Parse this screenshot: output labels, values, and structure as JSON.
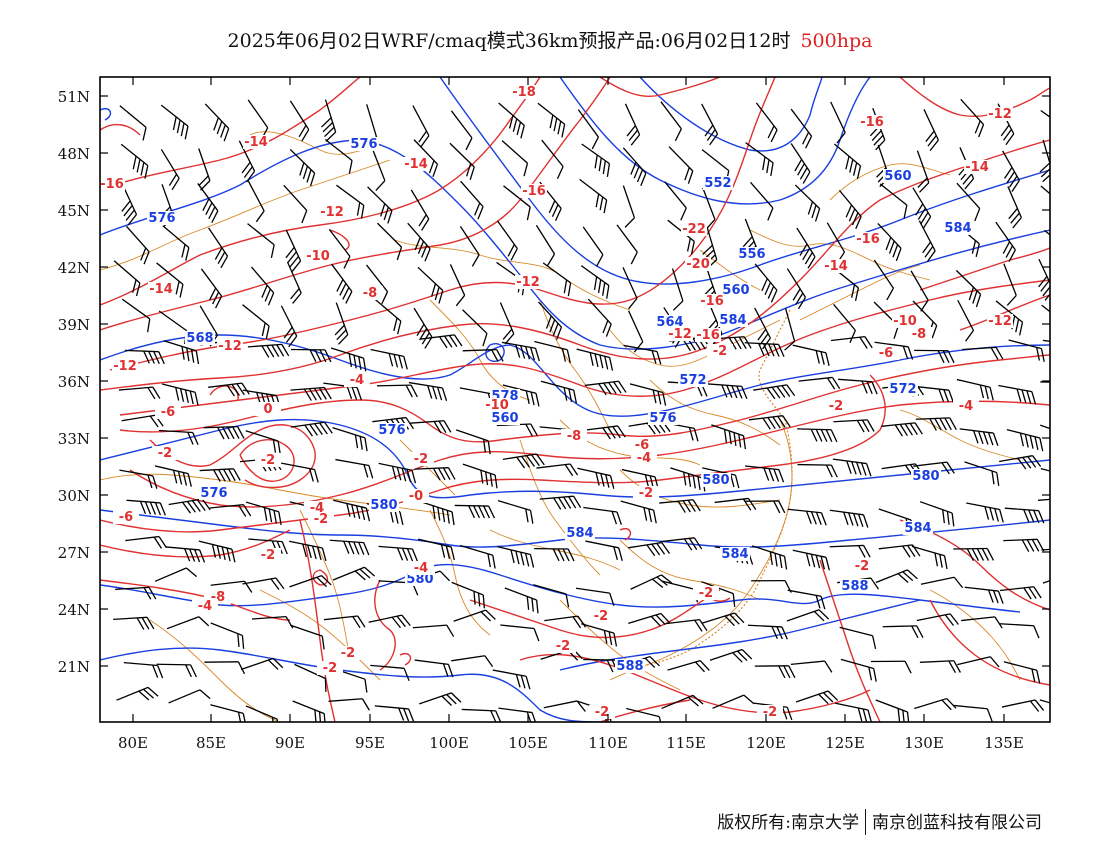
{
  "title": {
    "text": "2025年06月02日WRF/cmaq模式36km预报产品:06月02日12时",
    "level": "500hpa"
  },
  "footer": {
    "left": "版权所有:南京大学",
    "right": "南京创蓝科技有限公司"
  },
  "axes": {
    "lat_labels": [
      "51N",
      "48N",
      "45N",
      "42N",
      "39N",
      "36N",
      "33N",
      "30N",
      "27N",
      "24N",
      "21N"
    ],
    "lon_labels": [
      "80E",
      "85E",
      "90E",
      "95E",
      "100E",
      "105E",
      "110E",
      "115E",
      "120E",
      "125E",
      "130E",
      "135E"
    ]
  },
  "colors": {
    "temperature": "#e03030",
    "height": "#1a3fe0",
    "border": "#d9892a",
    "wind": "#000000"
  },
  "height_labels": [
    "576",
    "576",
    "552",
    "556",
    "584",
    "560",
    "564",
    "568",
    "560",
    "584",
    "572",
    "576",
    "572",
    "580",
    "576",
    "576",
    "580",
    "580",
    "578",
    "560",
    "584",
    "580",
    "584",
    "588",
    "588",
    "584"
  ],
  "temp_labels": [
    "-16",
    "-14",
    "-16",
    "-18",
    "-14",
    "-16",
    "-12",
    "-22",
    "-16",
    "-10",
    "-20",
    "-14",
    "-14",
    "-12",
    "-8",
    "-12",
    "-12",
    "-14",
    "-16",
    "-10",
    "-12",
    "-12",
    "-8",
    "-6",
    "-6",
    "-4",
    "-4",
    "-10",
    "-8",
    "0",
    "-2",
    "-6",
    "-4",
    "-2",
    "-6",
    "-2",
    "-4",
    "-2",
    "-2",
    "-2",
    "-0",
    "-2",
    "-2",
    "-8",
    "-4",
    "-4",
    "-2",
    "-2",
    "-2",
    "-2",
    "-2",
    "-2",
    "-2",
    "-2",
    "-2",
    "-12",
    "-16"
  ]
}
